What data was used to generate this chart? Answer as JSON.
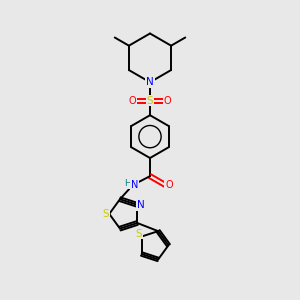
{
  "background_color": "#e8e8e8",
  "bond_color": "#000000",
  "atom_colors": {
    "N": "#0000ff",
    "O": "#ff0000",
    "S": "#cccc00",
    "H": "#008080"
  },
  "figsize": [
    3.0,
    3.0
  ],
  "dpi": 100
}
